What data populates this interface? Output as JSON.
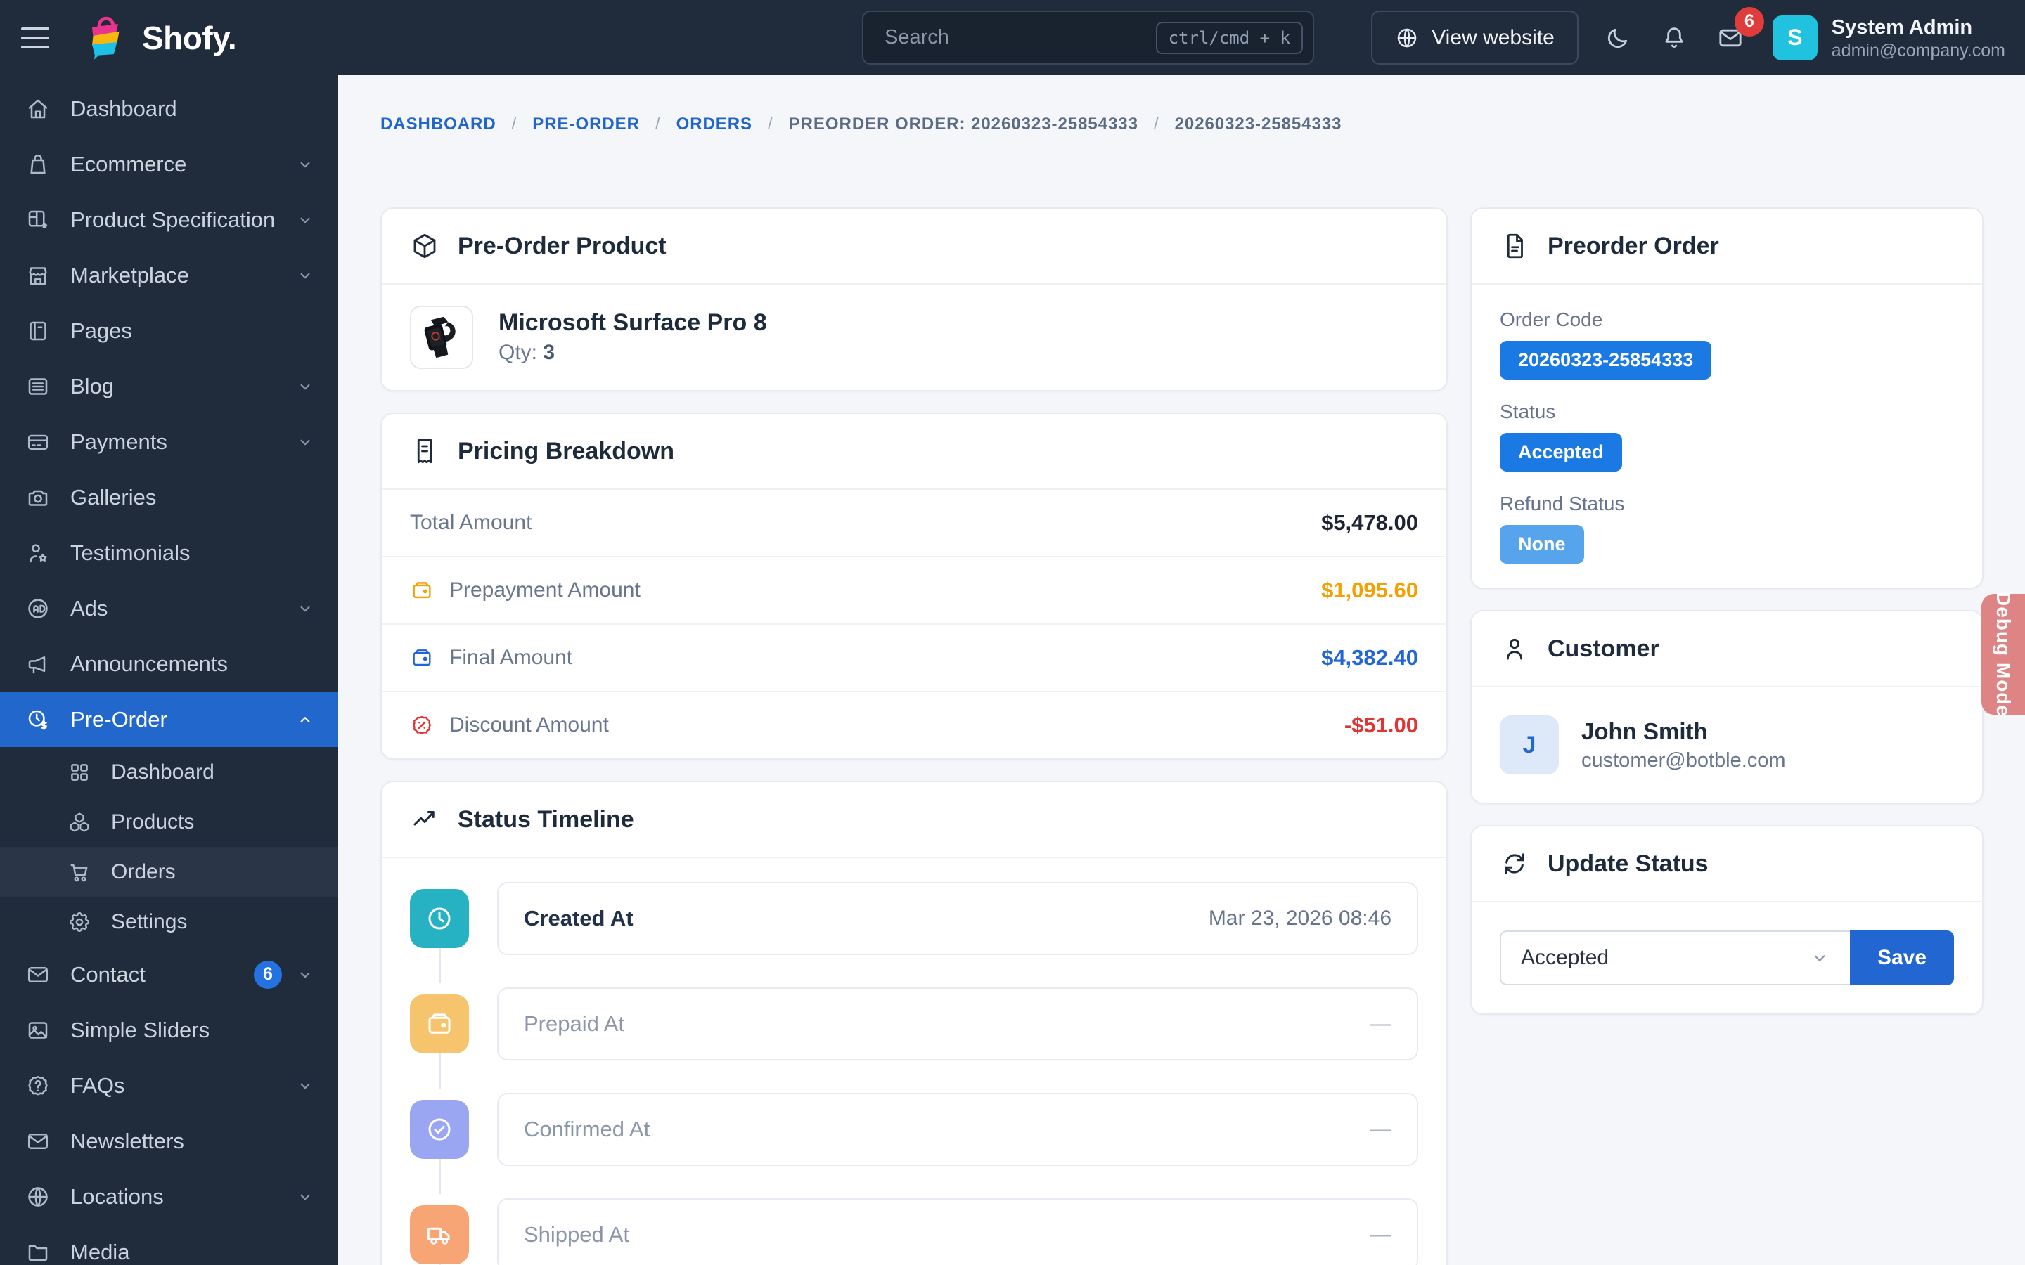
{
  "topbar": {
    "brand": "Shofy.",
    "search": {
      "placeholder": "Search",
      "kbd": "ctrl/cmd + k"
    },
    "view_website": "View website",
    "mail_badge": "6",
    "user": {
      "initial": "S",
      "name": "System Admin",
      "email": "admin@company.com"
    }
  },
  "sidebar": {
    "items": [
      {
        "icon": "home",
        "label": "Dashboard"
      },
      {
        "icon": "shopping-bag",
        "label": "Ecommerce",
        "chevron": "down"
      },
      {
        "icon": "layout-gear",
        "label": "Product Specification",
        "chevron": "down"
      },
      {
        "icon": "store",
        "label": "Marketplace",
        "chevron": "down"
      },
      {
        "icon": "notebook",
        "label": "Pages"
      },
      {
        "icon": "list-lines",
        "label": "Blog",
        "chevron": "down"
      },
      {
        "icon": "credit-card",
        "label": "Payments",
        "chevron": "down"
      },
      {
        "icon": "camera",
        "label": "Galleries"
      },
      {
        "icon": "user-star",
        "label": "Testimonials"
      },
      {
        "icon": "ad-circle",
        "label": "Ads",
        "chevron": "down"
      },
      {
        "icon": "megaphone",
        "label": "Announcements"
      },
      {
        "icon": "clock-dollar",
        "label": "Pre-Order",
        "chevron": "up",
        "active": true
      },
      {
        "icon": "grid",
        "label": "Dashboard",
        "sub": true
      },
      {
        "icon": "cubes",
        "label": "Products",
        "sub": true
      },
      {
        "icon": "cart",
        "label": "Orders",
        "sub": true,
        "current": true
      },
      {
        "icon": "gear",
        "label": "Settings",
        "sub": true
      },
      {
        "icon": "mail",
        "label": "Contact",
        "badge": "6",
        "chevron": "down"
      },
      {
        "icon": "photo",
        "label": "Simple Sliders"
      },
      {
        "icon": "help-circle",
        "label": "FAQs",
        "chevron": "down"
      },
      {
        "icon": "mail",
        "label": "Newsletters"
      },
      {
        "icon": "globe",
        "label": "Locations",
        "chevron": "down"
      },
      {
        "icon": "folder",
        "label": "Media"
      }
    ]
  },
  "breadcrumb": {
    "items": [
      {
        "label": "DASHBOARD",
        "link": true
      },
      {
        "label": "PRE-ORDER",
        "link": true
      },
      {
        "label": "ORDERS",
        "link": true
      },
      {
        "label": "PREORDER ORDER: 20260323-25854333",
        "link": false
      },
      {
        "label": "20260323-25854333",
        "link": false
      }
    ],
    "separator": "/"
  },
  "cards": {
    "product": {
      "title": "Pre-Order Product",
      "name": "Microsoft Surface Pro 8",
      "qty_label": "Qty:",
      "qty": "3"
    },
    "pricing": {
      "title": "Pricing Breakdown",
      "rows": [
        {
          "label": "Total Amount",
          "value": "$5,478.00",
          "color": "dark",
          "icon": null
        },
        {
          "label": "Prepayment Amount",
          "value": "$1,095.60",
          "color": "orange",
          "icon": "wallet"
        },
        {
          "label": "Final Amount",
          "value": "$4,382.40",
          "color": "blue",
          "icon": "wallet"
        },
        {
          "label": "Discount Amount",
          "value": "-$51.00",
          "color": "red",
          "icon": "discount"
        }
      ]
    },
    "timeline": {
      "title": "Status Timeline",
      "items": [
        {
          "label": "Created At",
          "value": "Mar 23, 2026 08:46",
          "icon": "clock",
          "color": "#27B2C4",
          "done": true
        },
        {
          "label": "Prepaid At",
          "value": "—",
          "icon": "wallet",
          "color": "#F6C46C",
          "done": false
        },
        {
          "label": "Confirmed At",
          "value": "—",
          "icon": "check-circle",
          "color": "#9AA6F2",
          "done": false
        },
        {
          "label": "Shipped At",
          "value": "—",
          "icon": "truck",
          "color": "#F8A575",
          "done": false
        }
      ]
    },
    "order": {
      "title": "Preorder Order",
      "fields": [
        {
          "label": "Order Code",
          "badge": "20260323-25854333",
          "style": "primary"
        },
        {
          "label": "Status",
          "badge": "Accepted",
          "style": "primary"
        },
        {
          "label": "Refund Status",
          "badge": "None",
          "style": "info"
        }
      ]
    },
    "customer": {
      "title": "Customer",
      "initial": "J",
      "name": "John Smith",
      "email": "customer@botble.com"
    },
    "update": {
      "title": "Update Status",
      "selected": "Accepted",
      "save_label": "Save"
    }
  },
  "debug_mode_label": "Debug Mode",
  "colors": {
    "topbar_bg": "#202B3C",
    "active_item": "#2268CC",
    "badge_primary": "#1B79E3",
    "badge_info": "#56A4EC",
    "value_orange": "#F5A000",
    "value_blue": "#2166D8",
    "value_red": "#E03535",
    "debug_tab": "#DE8484",
    "avatar_cyan": "#21C1E0"
  }
}
